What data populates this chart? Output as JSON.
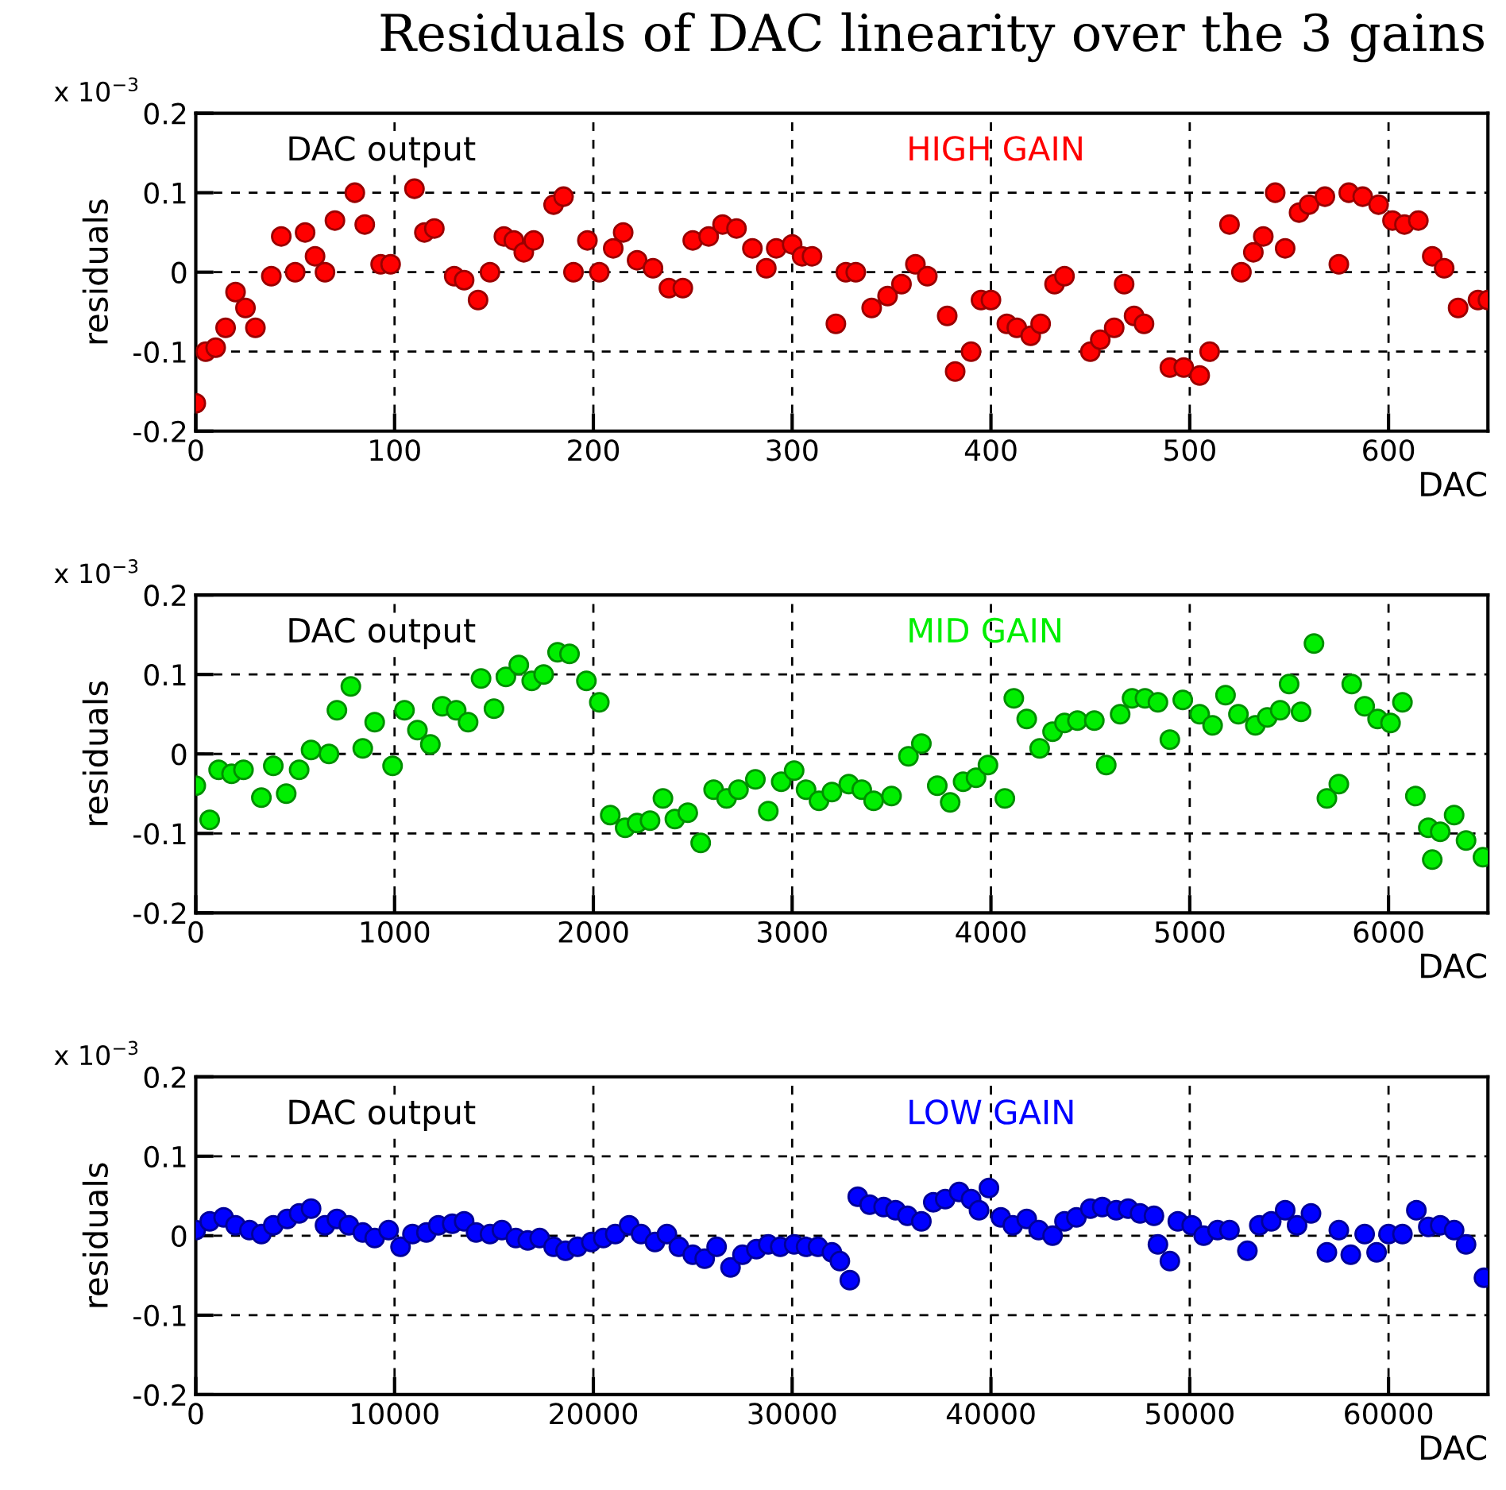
{
  "chart_data": [
    {
      "type": "scatter",
      "title": "Residuals of DAC linearity over the 3 gains",
      "xlabel": "DAC",
      "ylabel": "residuals",
      "annotations": [
        "x 10$^{−3}$",
        "DAC output"
      ],
      "xlim": [
        0,
        650
      ],
      "xticks": [
        0,
        100,
        200,
        300,
        400,
        500,
        600
      ],
      "ylim": [
        -0.2,
        0.2
      ],
      "yticks": [
        -0.2,
        -0.1,
        0,
        0.1,
        0.2
      ],
      "grid": true,
      "marker": "circle",
      "series": [
        {
          "name": "HIGH GAIN",
          "color": "#ff0000",
          "x": [
            0,
            5,
            10,
            15,
            20,
            25,
            30,
            38,
            43,
            50,
            55,
            60,
            65,
            70,
            80,
            85,
            93,
            98,
            110,
            115,
            120,
            130,
            135,
            142,
            148,
            155,
            160,
            165,
            170,
            180,
            185,
            190,
            197,
            203,
            210,
            215,
            222,
            230,
            238,
            245,
            250,
            258,
            265,
            272,
            280,
            287,
            292,
            300,
            305,
            310,
            322,
            327,
            332,
            340,
            348,
            355,
            362,
            368,
            378,
            382,
            390,
            395,
            400,
            408,
            413,
            420,
            425,
            432,
            437,
            450,
            455,
            462,
            467,
            472,
            477,
            490,
            497,
            505,
            510,
            520,
            526,
            532,
            537,
            543,
            548,
            555,
            560,
            568,
            575,
            580,
            587,
            595,
            602,
            608,
            615,
            622,
            628,
            635,
            645,
            650
          ],
          "values": [
            -0.165,
            -0.1,
            -0.095,
            -0.07,
            -0.025,
            -0.045,
            -0.07,
            -0.005,
            0.045,
            0,
            0.05,
            0.02,
            0,
            0.065,
            0.1,
            0.06,
            0.01,
            0.01,
            0.105,
            0.05,
            0.055,
            -0.005,
            -0.01,
            -0.035,
            0,
            0.045,
            0.04,
            0.025,
            0.04,
            0.085,
            0.095,
            0,
            0.04,
            0,
            0.03,
            0.05,
            0.015,
            0.005,
            -0.02,
            -0.02,
            0.04,
            0.045,
            0.06,
            0.055,
            0.03,
            0.005,
            0.03,
            0.035,
            0.02,
            0.02,
            -0.065,
            0,
            0,
            -0.045,
            -0.03,
            -0.015,
            0.01,
            -0.005,
            -0.055,
            -0.125,
            -0.1,
            -0.035,
            -0.035,
            -0.065,
            -0.07,
            -0.08,
            -0.065,
            -0.015,
            -0.005,
            -0.1,
            -0.085,
            -0.07,
            -0.015,
            -0.055,
            -0.065,
            -0.12,
            -0.12,
            -0.13,
            -0.1,
            0.06,
            0,
            0.025,
            0.045,
            0.1,
            0.03,
            0.075,
            0.085,
            0.095,
            0.01,
            0.1,
            0.095,
            0.085,
            0.065,
            0.06,
            0.065,
            0.02,
            0.005,
            -0.045,
            -0.035,
            -0.035
          ]
        }
      ]
    },
    {
      "type": "scatter",
      "xlabel": "DAC",
      "ylabel": "residuals",
      "annotations": [
        "x 10$^{−3}$",
        "DAC output"
      ],
      "xlim": [
        0,
        6500
      ],
      "xticks": [
        0,
        1000,
        2000,
        3000,
        4000,
        5000,
        6000
      ],
      "ylim": [
        -0.2,
        0.2
      ],
      "yticks": [
        -0.2,
        -0.1,
        0,
        0.1,
        0.2
      ],
      "grid": true,
      "marker": "circle",
      "series": [
        {
          "name": "MID GAIN",
          "color": "#00ee00",
          "x": [
            0,
            70,
            115,
            180,
            240,
            330,
            390,
            455,
            520,
            580,
            670,
            710,
            780,
            840,
            900,
            990,
            1050,
            1115,
            1180,
            1240,
            1310,
            1370,
            1435,
            1500,
            1560,
            1625,
            1690,
            1750,
            1820,
            1880,
            1965,
            2030,
            2085,
            2160,
            2220,
            2285,
            2350,
            2410,
            2475,
            2540,
            2605,
            2670,
            2730,
            2815,
            2880,
            2945,
            3010,
            3070,
            3135,
            3200,
            3285,
            3350,
            3410,
            3500,
            3585,
            3650,
            3730,
            3795,
            3860,
            3925,
            3985,
            4070,
            4115,
            4180,
            4245,
            4310,
            4370,
            4435,
            4520,
            4580,
            4650,
            4710,
            4775,
            4840,
            4900,
            4965,
            5050,
            5115,
            5180,
            5245,
            5330,
            5390,
            5455,
            5500,
            5560,
            5625,
            5690,
            5750,
            5815,
            5880,
            5945,
            6010,
            6070,
            6135,
            6200,
            6220,
            6260,
            6330,
            6390,
            6475
          ],
          "values": [
            -0.04,
            -0.083,
            -0.02,
            -0.025,
            -0.02,
            -0.055,
            -0.015,
            -0.05,
            -0.02,
            0.005,
            0,
            0.055,
            0.085,
            0.007,
            0.04,
            -0.015,
            0.055,
            0.03,
            0.012,
            0.06,
            0.055,
            0.04,
            0.095,
            0.057,
            0.097,
            0.112,
            0.092,
            0.1,
            0.128,
            0.126,
            0.092,
            0.065,
            -0.077,
            -0.093,
            -0.087,
            -0.084,
            -0.056,
            -0.082,
            -0.074,
            -0.112,
            -0.045,
            -0.056,
            -0.045,
            -0.032,
            -0.072,
            -0.035,
            -0.021,
            -0.045,
            -0.059,
            -0.048,
            -0.038,
            -0.045,
            -0.059,
            -0.053,
            -0.003,
            0.013,
            -0.04,
            -0.061,
            -0.035,
            -0.03,
            -0.014,
            -0.056,
            0.07,
            0.044,
            0.007,
            0.028,
            0.039,
            0.042,
            0.042,
            -0.014,
            0.05,
            0.07,
            0.07,
            0.065,
            0.018,
            0.068,
            0.05,
            0.036,
            0.074,
            0.05,
            0.036,
            0.046,
            0.055,
            0.088,
            0.053,
            0.139,
            -0.056,
            -0.038,
            0.088,
            0.06,
            0.044,
            0.039,
            0.065,
            -0.053,
            -0.093,
            -0.133,
            -0.098,
            -0.077,
            -0.109,
            -0.13
          ]
        }
      ]
    },
    {
      "type": "scatter",
      "xlabel": "DAC",
      "ylabel": "residuals",
      "annotations": [
        "x 10$^{−3}$",
        "DAC output"
      ],
      "xlim": [
        0,
        65000
      ],
      "xticks": [
        0,
        10000,
        20000,
        30000,
        40000,
        50000,
        60000
      ],
      "ylim": [
        -0.2,
        0.2
      ],
      "yticks": [
        -0.2,
        -0.1,
        0,
        0.1,
        0.2
      ],
      "grid": true,
      "marker": "circle",
      "series": [
        {
          "name": "LOW GAIN",
          "color": "#0000ff",
          "x": [
            0,
            700,
            1400,
            2000,
            2700,
            3300,
            3900,
            4600,
            5200,
            5800,
            6500,
            7100,
            7700,
            8400,
            9000,
            9700,
            10300,
            10900,
            11600,
            12200,
            12900,
            13500,
            14100,
            14800,
            15400,
            16100,
            16700,
            17300,
            18000,
            18600,
            19200,
            19900,
            20500,
            21100,
            21800,
            22400,
            23100,
            23700,
            24300,
            25000,
            25600,
            26200,
            26900,
            27500,
            28200,
            28800,
            29400,
            30100,
            30700,
            31300,
            32000,
            32400,
            32900,
            33300,
            33900,
            34600,
            35200,
            35800,
            36500,
            37100,
            37700,
            38400,
            39000,
            39400,
            39900,
            40500,
            41100,
            41800,
            42400,
            43100,
            43700,
            44300,
            45000,
            45600,
            46300,
            46900,
            47500,
            48200,
            48400,
            49000,
            49400,
            50100,
            50700,
            51400,
            52000,
            52900,
            53500,
            54100,
            54800,
            55400,
            56100,
            56900,
            57500,
            58100,
            58800,
            59400,
            60000,
            60700,
            61400,
            62000,
            62600,
            63300,
            63900,
            64800
          ],
          "values": [
            0.007,
            0.018,
            0.023,
            0.013,
            0.007,
            0.002,
            0.013,
            0.021,
            0.028,
            0.034,
            0.013,
            0.021,
            0.013,
            0.004,
            -0.003,
            0.007,
            -0.014,
            0.002,
            0.004,
            0.013,
            0.015,
            0.018,
            0.004,
            0.002,
            0.007,
            -0.003,
            -0.006,
            -0.003,
            -0.014,
            -0.019,
            -0.014,
            -0.008,
            -0.003,
            0.002,
            0.013,
            0.002,
            -0.008,
            0.002,
            -0.014,
            -0.024,
            -0.029,
            -0.014,
            -0.04,
            -0.024,
            -0.017,
            -0.011,
            -0.014,
            -0.011,
            -0.014,
            -0.014,
            -0.021,
            -0.032,
            -0.056,
            0.049,
            0.039,
            0.036,
            0.032,
            0.025,
            0.018,
            0.042,
            0.046,
            0.055,
            0.046,
            0.032,
            0.06,
            0.023,
            0.013,
            0.021,
            0.007,
            0,
            0.018,
            0.023,
            0.034,
            0.036,
            0.032,
            0.034,
            0.028,
            0.025,
            -0.011,
            -0.032,
            0.018,
            0.013,
            0,
            0.007,
            0.007,
            -0.019,
            0.013,
            0.018,
            0.032,
            0.013,
            0.028,
            -0.021,
            0.007,
            -0.024,
            0.002,
            -0.021,
            0.002,
            0.002,
            0.032,
            0.011,
            0.013,
            0.007,
            -0.011,
            -0.053
          ]
        }
      ]
    }
  ]
}
